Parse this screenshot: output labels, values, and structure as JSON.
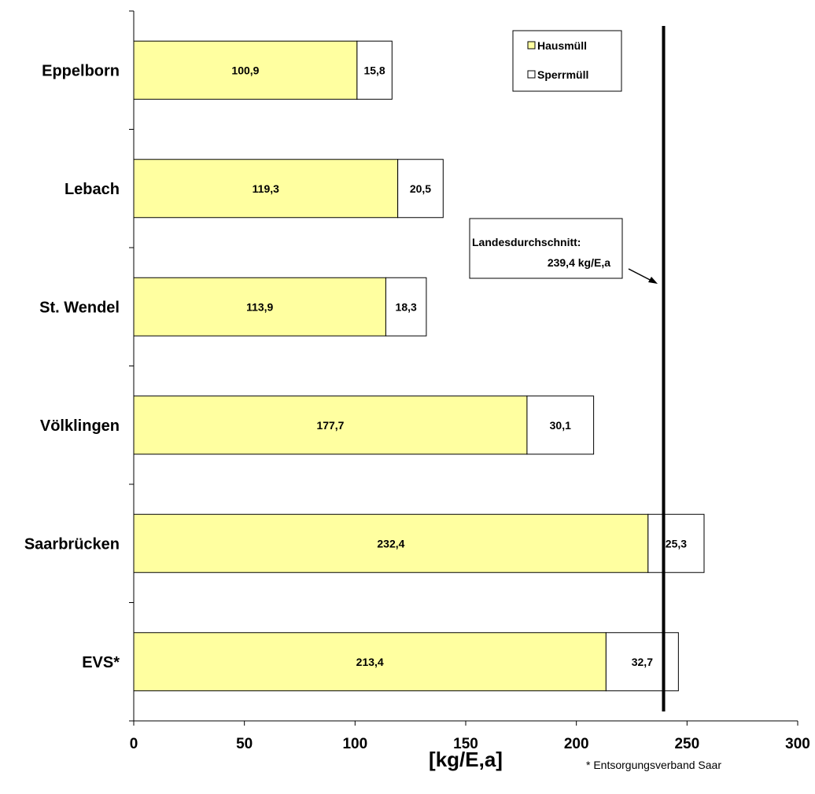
{
  "chart_data": {
    "type": "bar",
    "orientation": "horizontal",
    "stacked": true,
    "categories": [
      "Eppelborn",
      "Lebach",
      "St. Wendel",
      "Völklingen",
      "Saarbrücken",
      "EVS*"
    ],
    "series": [
      {
        "name": "Hausmüll",
        "color": "#FFFFA0",
        "values": [
          100.9,
          119.3,
          113.9,
          177.7,
          232.4,
          213.4
        ],
        "labels": [
          "100,9",
          "119,3",
          "113,9",
          "177,7",
          "232,4",
          "213,4"
        ]
      },
      {
        "name": "Sperrmüll",
        "color": "#FFFFFF",
        "values": [
          15.8,
          20.5,
          18.3,
          30.1,
          25.3,
          32.7
        ],
        "labels": [
          "15,8",
          "20,5",
          "18,3",
          "30,1",
          "25,3",
          "32,7"
        ]
      }
    ],
    "xlabel": "[kg/E,a]",
    "xlim": [
      0,
      300
    ],
    "xticks": [
      "0",
      "50",
      "100",
      "150",
      "200",
      "250",
      "300"
    ],
    "grid": false,
    "legend_position": "top-right",
    "reference_line": {
      "value": 239.4,
      "label_line1": "Landesdurchschnitt:",
      "label_line2": "239,4 kg/E,a"
    },
    "footnote": "* Entsorgungsverband Saar"
  }
}
